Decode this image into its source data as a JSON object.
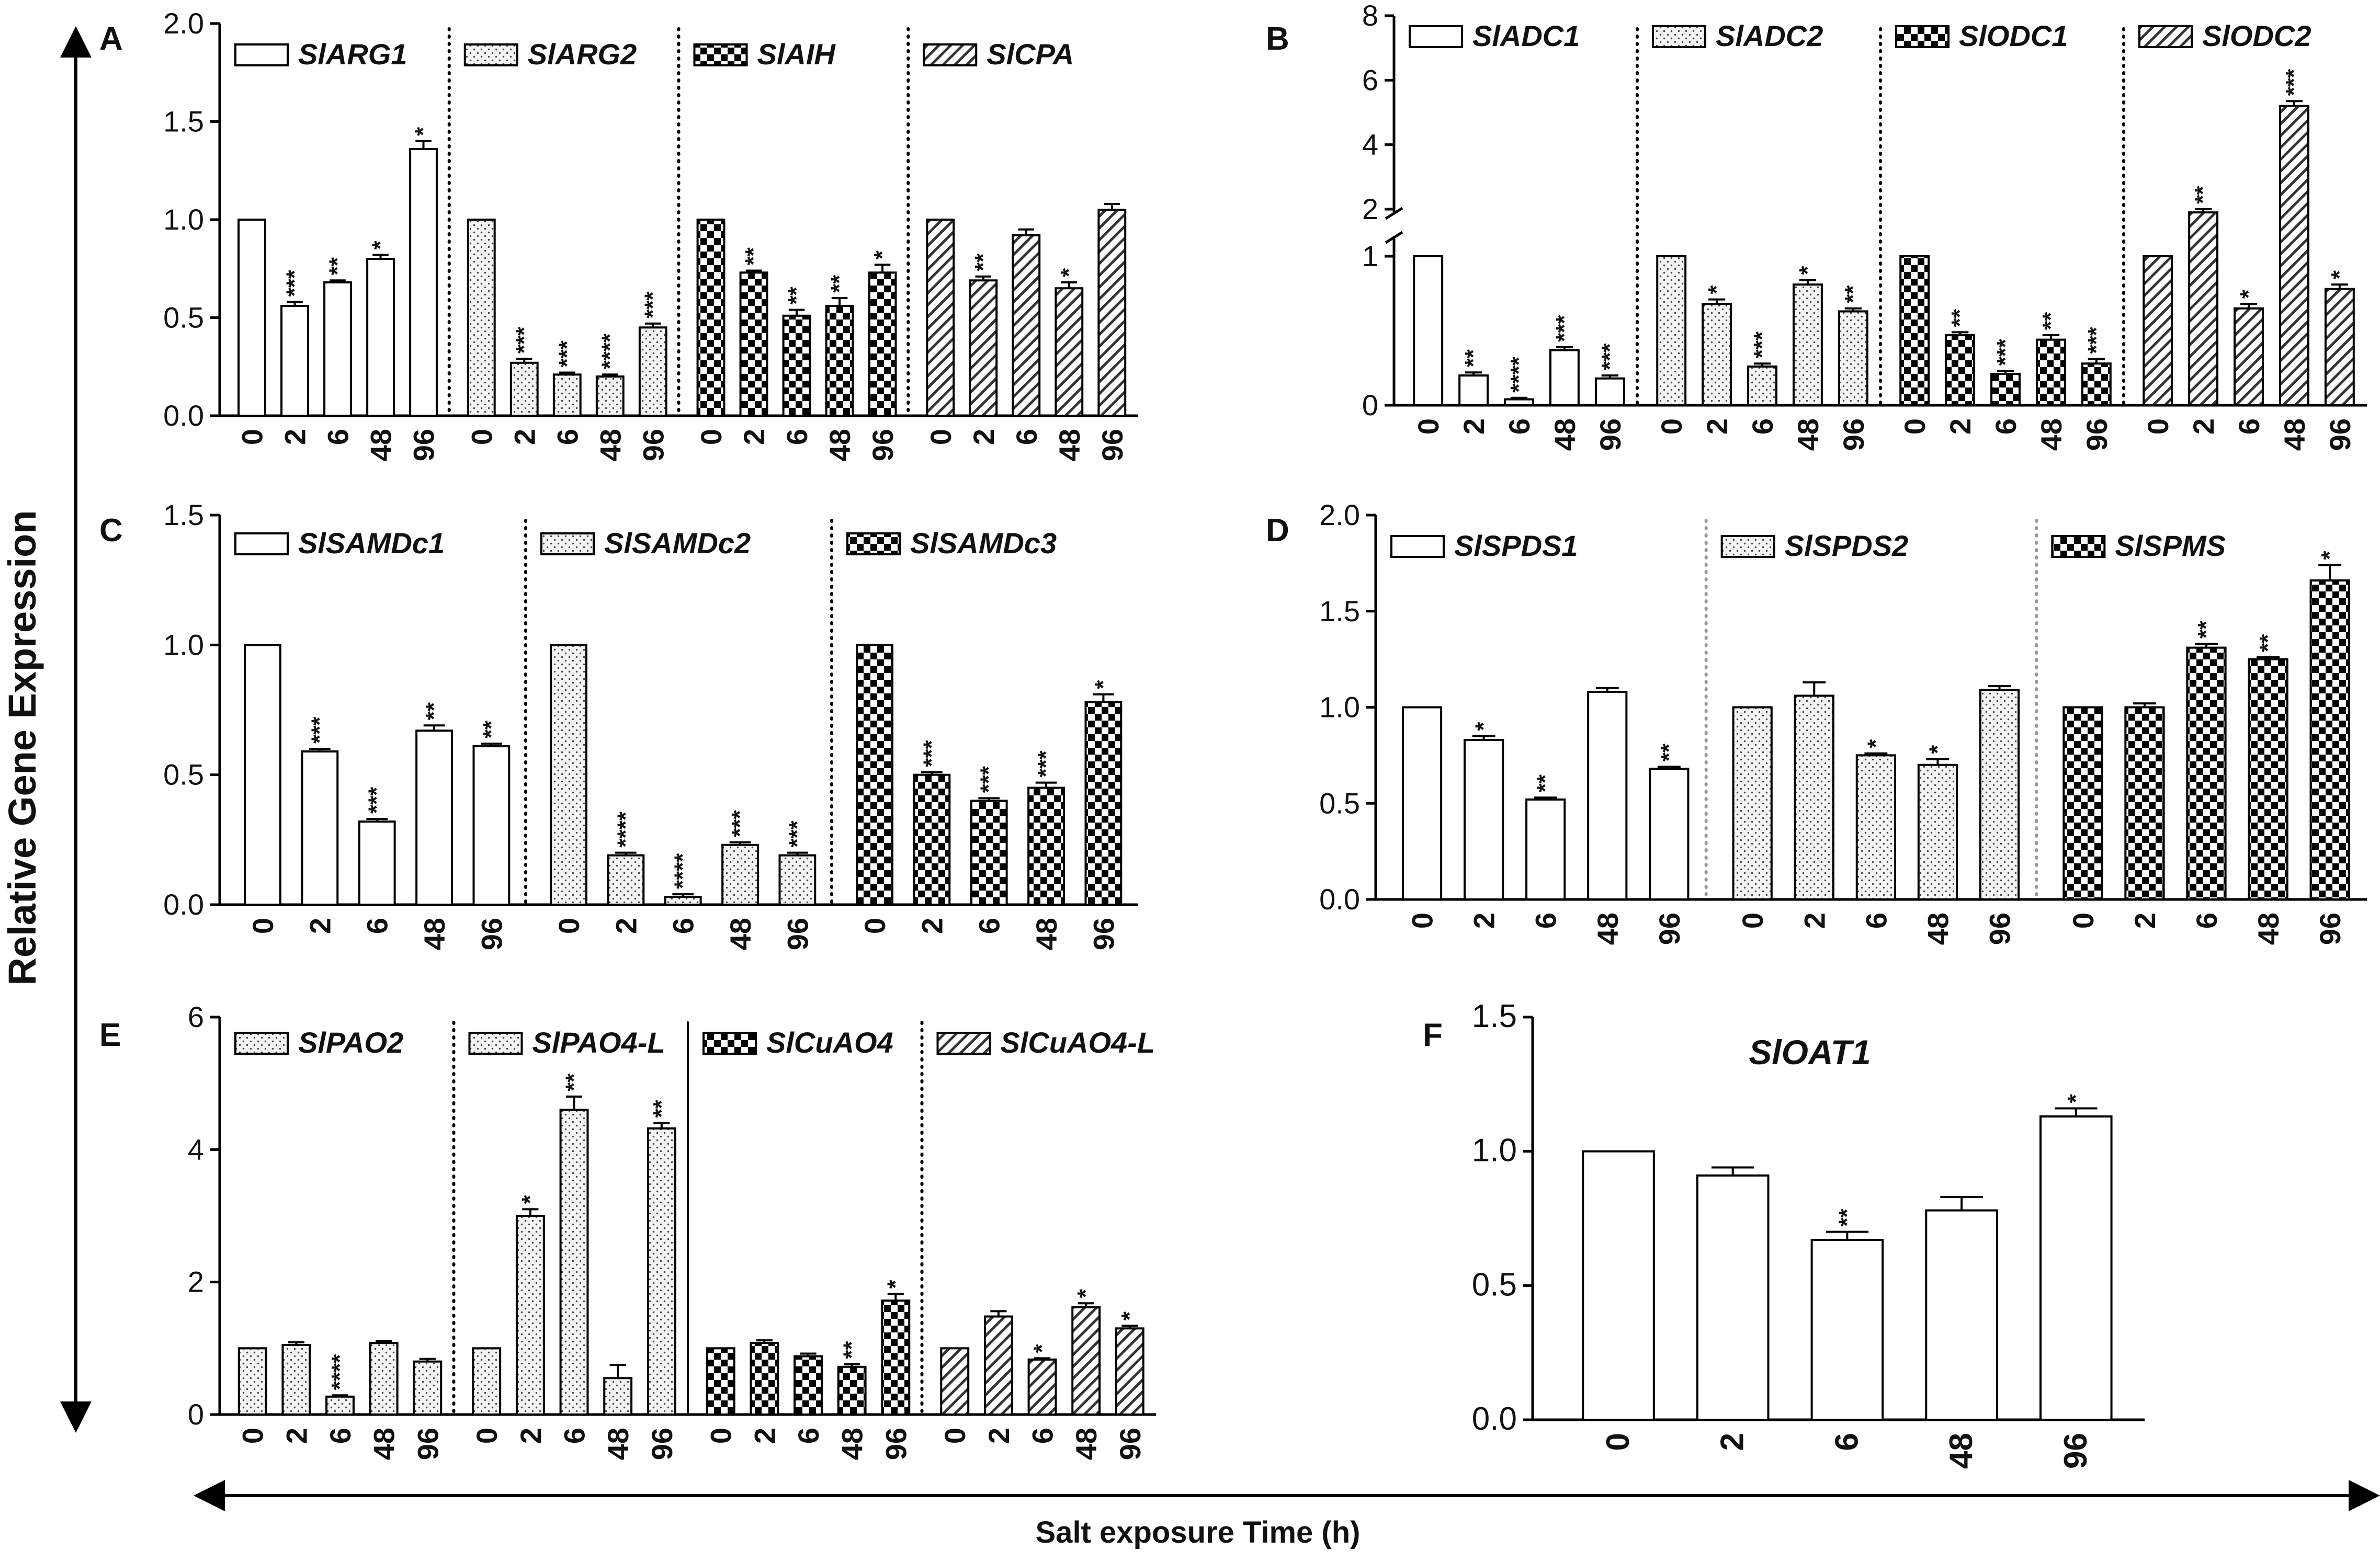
{
  "figure": {
    "y_axis_label": "Relative Gene Expression",
    "x_axis_label": "Salt exposure Time (h)"
  },
  "chart_data": [
    {
      "panel": "A",
      "type": "bar",
      "categories": [
        "0",
        "2",
        "6",
        "48",
        "96"
      ],
      "yticks": [
        "0.0",
        "0.5",
        "1.0",
        "1.5",
        "2.0"
      ],
      "ylim": [
        0,
        2.0
      ],
      "series": [
        {
          "name": "SlARG1",
          "pattern": "plain",
          "values": [
            1.0,
            0.56,
            0.68,
            0.8,
            1.36
          ],
          "errors": [
            0,
            0.02,
            0.01,
            0.02,
            0.04
          ],
          "sig": [
            "",
            "***",
            "**",
            "*",
            "*"
          ]
        },
        {
          "name": "SlARG2",
          "pattern": "dots",
          "values": [
            1.0,
            0.27,
            0.21,
            0.2,
            0.45
          ],
          "errors": [
            0,
            0.02,
            0.01,
            0.01,
            0.02
          ],
          "sig": [
            "",
            "***",
            "***",
            "****",
            "***"
          ]
        },
        {
          "name": "SlAIH",
          "pattern": "checker",
          "values": [
            1.0,
            0.73,
            0.51,
            0.56,
            0.73
          ],
          "errors": [
            0,
            0.01,
            0.03,
            0.04,
            0.04
          ],
          "sig": [
            "",
            "**",
            "**",
            "**",
            "*"
          ]
        },
        {
          "name": "SlCPA",
          "pattern": "hatch",
          "values": [
            1.0,
            0.69,
            0.92,
            0.65,
            1.05
          ],
          "errors": [
            0,
            0.02,
            0.03,
            0.03,
            0.03
          ],
          "sig": [
            "",
            "**",
            "",
            "*",
            ""
          ]
        }
      ]
    },
    {
      "panel": "B",
      "type": "bar",
      "categories": [
        "0",
        "2",
        "6",
        "48",
        "96"
      ],
      "yticks_lower": [
        "0",
        "1"
      ],
      "yticks_upper": [
        "2",
        "4",
        "6",
        "8"
      ],
      "axis_break": [
        1.0,
        2.0
      ],
      "series": [
        {
          "name": "SlADC1",
          "pattern": "plain",
          "values": [
            1.0,
            0.2,
            0.04,
            0.37,
            0.18
          ],
          "errors": [
            0,
            0.02,
            0.01,
            0.02,
            0.02
          ],
          "sig": [
            "",
            "**",
            "****",
            "***",
            "***"
          ]
        },
        {
          "name": "SlADC2",
          "pattern": "dots",
          "values": [
            1.0,
            0.68,
            0.26,
            0.81,
            0.63
          ],
          "errors": [
            0,
            0.03,
            0.02,
            0.03,
            0.02
          ],
          "sig": [
            "",
            "*",
            "***",
            "*",
            "**"
          ]
        },
        {
          "name": "SlODC1",
          "pattern": "checker",
          "values": [
            1.0,
            0.47,
            0.21,
            0.44,
            0.28
          ],
          "errors": [
            0,
            0.02,
            0.02,
            0.03,
            0.03
          ],
          "sig": [
            "",
            "**",
            "***",
            "**",
            "***"
          ]
        },
        {
          "name": "SlODC2",
          "pattern": "hatch",
          "values": [
            1.0,
            1.9,
            0.65,
            5.2,
            0.78
          ],
          "errors": [
            0,
            0.1,
            0.03,
            0.15,
            0.03
          ],
          "sig": [
            "",
            "**",
            "*",
            "***",
            "*"
          ]
        }
      ]
    },
    {
      "panel": "C",
      "type": "bar",
      "categories": [
        "0",
        "2",
        "6",
        "48",
        "96"
      ],
      "yticks": [
        "0.0",
        "0.5",
        "1.0",
        "1.5"
      ],
      "ylim": [
        0,
        1.5
      ],
      "series": [
        {
          "name": "SlSAMDc1",
          "pattern": "plain",
          "values": [
            1.0,
            0.59,
            0.32,
            0.67,
            0.61
          ],
          "errors": [
            0,
            0.01,
            0.01,
            0.02,
            0.01
          ],
          "sig": [
            "",
            "***",
            "***",
            "**",
            "**"
          ]
        },
        {
          "name": "SlSAMDc2",
          "pattern": "dots",
          "values": [
            1.0,
            0.19,
            0.03,
            0.23,
            0.19
          ],
          "errors": [
            0,
            0.01,
            0.01,
            0.01,
            0.01
          ],
          "sig": [
            "",
            "****",
            "****",
            "***",
            "***"
          ]
        },
        {
          "name": "SlSAMDc3",
          "pattern": "checker",
          "values": [
            1.0,
            0.5,
            0.4,
            0.45,
            0.78
          ],
          "errors": [
            0,
            0.01,
            0.01,
            0.02,
            0.03
          ],
          "sig": [
            "",
            "***",
            "***",
            "***",
            "*"
          ]
        }
      ]
    },
    {
      "panel": "D",
      "type": "bar",
      "categories": [
        "0",
        "2",
        "6",
        "48",
        "96"
      ],
      "yticks": [
        "0.0",
        "0.5",
        "1.0",
        "1.5",
        "2.0"
      ],
      "ylim": [
        0,
        2.0
      ],
      "series": [
        {
          "name": "SlSPDS1",
          "pattern": "plain",
          "values": [
            1.0,
            0.83,
            0.52,
            1.08,
            0.68
          ],
          "errors": [
            0,
            0.02,
            0.01,
            0.02,
            0.01
          ],
          "sig": [
            "",
            "*",
            "**",
            "",
            "**"
          ]
        },
        {
          "name": "SlSPDS2",
          "pattern": "dots",
          "values": [
            1.0,
            1.06,
            0.75,
            0.7,
            1.09
          ],
          "errors": [
            0,
            0.07,
            0.01,
            0.03,
            0.02
          ],
          "sig": [
            "",
            "",
            "*",
            "*",
            ""
          ]
        },
        {
          "name": "SlSPMS",
          "pattern": "checker",
          "values": [
            1.0,
            1.0,
            1.31,
            1.25,
            1.66
          ],
          "errors": [
            0,
            0.02,
            0.02,
            0.01,
            0.08
          ],
          "sig": [
            "",
            "",
            "**",
            "**",
            "*"
          ]
        }
      ]
    },
    {
      "panel": "E",
      "type": "bar",
      "categories": [
        "0",
        "2",
        "6",
        "48",
        "96"
      ],
      "yticks": [
        "0",
        "2",
        "4",
        "6"
      ],
      "ylim": [
        0,
        6
      ],
      "series": [
        {
          "name": "SlPAO2",
          "pattern": "dots",
          "values": [
            1.0,
            1.05,
            0.27,
            1.08,
            0.8
          ],
          "errors": [
            0,
            0.04,
            0.02,
            0.03,
            0.04
          ],
          "sig": [
            "",
            "",
            "****",
            "",
            ""
          ]
        },
        {
          "name": "SlPAO4-L",
          "pattern": "dots",
          "values": [
            1.0,
            3.0,
            4.6,
            0.55,
            4.32
          ],
          "errors": [
            0,
            0.1,
            0.2,
            0.2,
            0.08
          ],
          "sig": [
            "",
            "*",
            "**",
            "",
            "**"
          ]
        },
        {
          "name": "SlCuAO4",
          "pattern": "checker",
          "values": [
            1.0,
            1.08,
            0.88,
            0.72,
            1.72
          ],
          "errors": [
            0,
            0.04,
            0.04,
            0.04,
            0.1
          ],
          "sig": [
            "",
            "",
            "",
            "**",
            "*"
          ]
        },
        {
          "name": "SlCuAO4-L",
          "pattern": "hatch",
          "values": [
            1.0,
            1.48,
            0.83,
            1.62,
            1.3
          ],
          "errors": [
            0,
            0.08,
            0.02,
            0.06,
            0.04
          ],
          "sig": [
            "",
            "",
            "*",
            "*",
            "*"
          ]
        }
      ]
    },
    {
      "panel": "F",
      "type": "bar",
      "title": "SlOAT1",
      "categories": [
        "0",
        "2",
        "6",
        "48",
        "96"
      ],
      "yticks": [
        "0.0",
        "0.5",
        "1.0",
        "1.5"
      ],
      "ylim": [
        0,
        1.5
      ],
      "series": [
        {
          "name": "SlOAT1",
          "pattern": "plain",
          "values": [
            1.0,
            0.91,
            0.67,
            0.78,
            1.13
          ],
          "errors": [
            0,
            0.03,
            0.03,
            0.05,
            0.03
          ],
          "sig": [
            "",
            "",
            "**",
            "",
            "*"
          ]
        }
      ]
    }
  ]
}
